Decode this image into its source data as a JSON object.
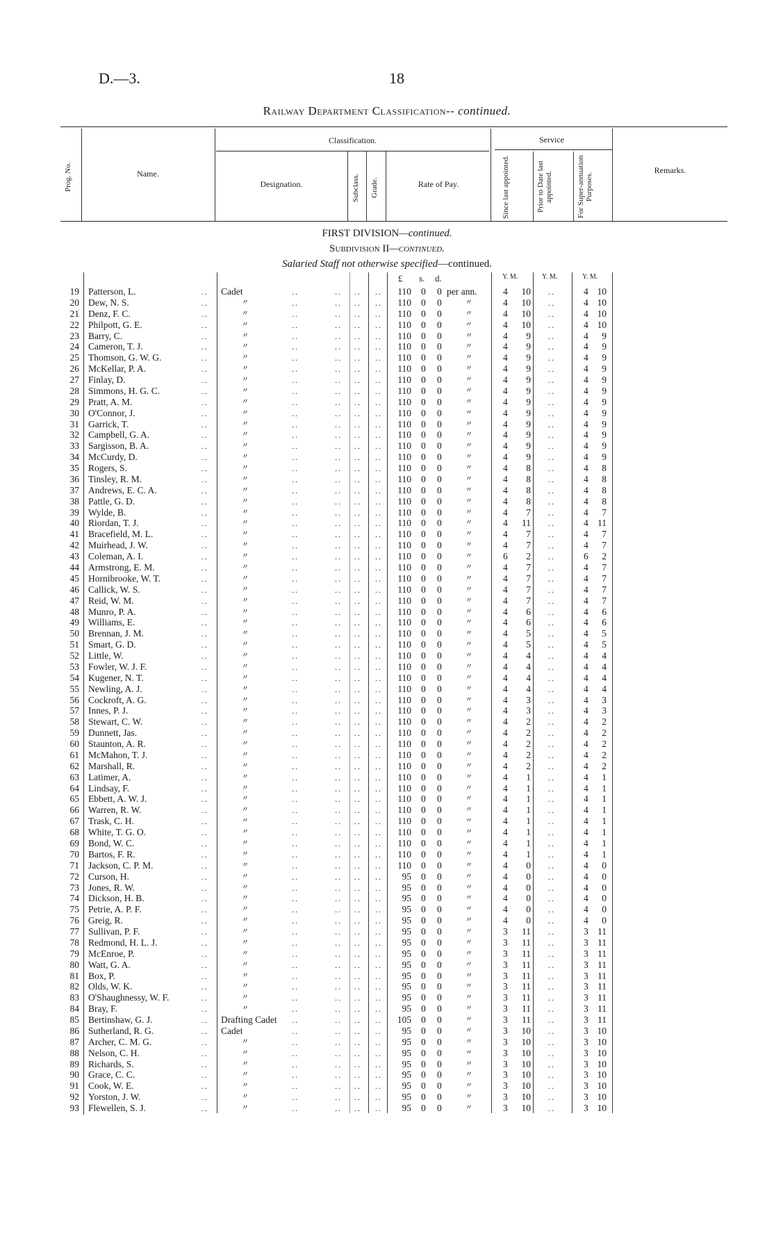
{
  "header": {
    "code": "D.—3.",
    "page_number": "18",
    "title": "Railway Department Classification--",
    "title_suffix": "continued."
  },
  "columns": {
    "prog_no": "Prog. No.",
    "name": "Name.",
    "classification": "Classification.",
    "designation": "Designation.",
    "subclass": "Subclass.",
    "grade": "Grade.",
    "rate_of_pay": "Rate of Pay.",
    "service": "Service",
    "since_last": "Since last appointed.",
    "prior_to_date": "Prior to Date last appointed.",
    "superannuation": "For Super-annuation Purposes.",
    "remarks": "Remarks."
  },
  "section": {
    "division": "FIRST DIVISION",
    "division_suffix": "—continued.",
    "subdivision": "Subdivision II",
    "subdivision_suffix": "—continued.",
    "group": "Salaried Staff not otherwise specified",
    "group_suffix": "—continued."
  },
  "units": {
    "pounds": "£",
    "shillings": "s.",
    "pence": "d.",
    "since": "Y. M.",
    "prior": "Y. M.",
    "super": "Y. M."
  },
  "rows": [
    {
      "no": "19",
      "name": "Patterson, L.",
      "des": "Cadet",
      "l": "110",
      "s": "0",
      "d": "0",
      "per": "per ann.",
      "sy": "4",
      "sm": "10",
      "prior": "..",
      "uy": "4",
      "um": "10"
    },
    {
      "no": "20",
      "name": "Dew, N. S.",
      "des": "〃",
      "l": "110",
      "s": "0",
      "d": "0",
      "per": "〃",
      "sy": "4",
      "sm": "10",
      "prior": "..",
      "uy": "4",
      "um": "10"
    },
    {
      "no": "21",
      "name": "Denz, F. C.",
      "des": "〃",
      "l": "110",
      "s": "0",
      "d": "0",
      "per": "〃",
      "sy": "4",
      "sm": "10",
      "prior": "..",
      "uy": "4",
      "um": "10"
    },
    {
      "no": "22",
      "name": "Philpott, G. E.",
      "des": "〃",
      "l": "110",
      "s": "0",
      "d": "0",
      "per": "〃",
      "sy": "4",
      "sm": "10",
      "prior": "..",
      "uy": "4",
      "um": "10"
    },
    {
      "no": "23",
      "name": "Barry, C.",
      "des": "〃",
      "l": "110",
      "s": "0",
      "d": "0",
      "per": "〃",
      "sy": "4",
      "sm": "9",
      "prior": "..",
      "uy": "4",
      "um": "9"
    },
    {
      "no": "24",
      "name": "Cameron, T. J.",
      "des": "〃",
      "l": "110",
      "s": "0",
      "d": "0",
      "per": "〃",
      "sy": "4",
      "sm": "9",
      "prior": "..",
      "uy": "4",
      "um": "9"
    },
    {
      "no": "25",
      "name": "Thomson, G. W. G.",
      "des": "〃",
      "l": "110",
      "s": "0",
      "d": "0",
      "per": "〃",
      "sy": "4",
      "sm": "9",
      "prior": "..",
      "uy": "4",
      "um": "9"
    },
    {
      "no": "26",
      "name": "McKellar, P. A.",
      "des": "〃",
      "l": "110",
      "s": "0",
      "d": "0",
      "per": "〃",
      "sy": "4",
      "sm": "9",
      "prior": "..",
      "uy": "4",
      "um": "9"
    },
    {
      "no": "27",
      "name": "Finlay, D.",
      "des": "〃",
      "l": "110",
      "s": "0",
      "d": "0",
      "per": "〃",
      "sy": "4",
      "sm": "9",
      "prior": "..",
      "uy": "4",
      "um": "9"
    },
    {
      "no": "28",
      "name": "Simmons, H. G. C.",
      "des": "〃",
      "l": "110",
      "s": "0",
      "d": "0",
      "per": "〃",
      "sy": "4",
      "sm": "9",
      "prior": "..",
      "uy": "4",
      "um": "9"
    },
    {
      "no": "29",
      "name": "Pratt, A. M.",
      "des": "〃",
      "l": "110",
      "s": "0",
      "d": "0",
      "per": "〃",
      "sy": "4",
      "sm": "9",
      "prior": "..",
      "uy": "4",
      "um": "9"
    },
    {
      "no": "30",
      "name": "O'Connor, J.",
      "des": "〃",
      "l": "110",
      "s": "0",
      "d": "0",
      "per": "〃",
      "sy": "4",
      "sm": "9",
      "prior": "..",
      "uy": "4",
      "um": "9"
    },
    {
      "no": "31",
      "name": "Garrick, T.",
      "des": "〃",
      "l": "110",
      "s": "0",
      "d": "0",
      "per": "〃",
      "sy": "4",
      "sm": "9",
      "prior": "..",
      "uy": "4",
      "um": "9"
    },
    {
      "no": "32",
      "name": "Campbell, G. A.",
      "des": "〃",
      "l": "110",
      "s": "0",
      "d": "0",
      "per": "〃",
      "sy": "4",
      "sm": "9",
      "prior": "..",
      "uy": "4",
      "um": "9"
    },
    {
      "no": "33",
      "name": "Sargisson, B. A.",
      "des": "〃",
      "l": "110",
      "s": "0",
      "d": "0",
      "per": "〃",
      "sy": "4",
      "sm": "9",
      "prior": "..",
      "uy": "4",
      "um": "9"
    },
    {
      "no": "34",
      "name": "McCurdy, D.",
      "des": "〃",
      "l": "110",
      "s": "0",
      "d": "0",
      "per": "〃",
      "sy": "4",
      "sm": "9",
      "prior": "..",
      "uy": "4",
      "um": "9"
    },
    {
      "no": "35",
      "name": "Rogers, S.",
      "des": "〃",
      "l": "110",
      "s": "0",
      "d": "0",
      "per": "〃",
      "sy": "4",
      "sm": "8",
      "prior": "..",
      "uy": "4",
      "um": "8"
    },
    {
      "no": "36",
      "name": "Tinsley, R. M.",
      "des": "〃",
      "l": "110",
      "s": "0",
      "d": "0",
      "per": "〃",
      "sy": "4",
      "sm": "8",
      "prior": "..",
      "uy": "4",
      "um": "8"
    },
    {
      "no": "37",
      "name": "Andrews, E. C. A.",
      "des": "〃",
      "l": "110",
      "s": "0",
      "d": "0",
      "per": "〃",
      "sy": "4",
      "sm": "8",
      "prior": "..",
      "uy": "4",
      "um": "8"
    },
    {
      "no": "38",
      "name": "Pattle, G. D.",
      "des": "〃",
      "l": "110",
      "s": "0",
      "d": "0",
      "per": "〃",
      "sy": "4",
      "sm": "8",
      "prior": "..",
      "uy": "4",
      "um": "8"
    },
    {
      "no": "39",
      "name": "Wylde, B.",
      "des": "〃",
      "l": "110",
      "s": "0",
      "d": "0",
      "per": "〃",
      "sy": "4",
      "sm": "7",
      "prior": "..",
      "uy": "4",
      "um": "7"
    },
    {
      "no": "40",
      "name": "Riordan, T. J.",
      "des": "〃",
      "l": "110",
      "s": "0",
      "d": "0",
      "per": "〃",
      "sy": "4",
      "sm": "11",
      "prior": "..",
      "uy": "4",
      "um": "11"
    },
    {
      "no": "41",
      "name": "Bracefield, M. L.",
      "des": "〃",
      "l": "110",
      "s": "0",
      "d": "0",
      "per": "〃",
      "sy": "4",
      "sm": "7",
      "prior": "..",
      "uy": "4",
      "um": "7"
    },
    {
      "no": "42",
      "name": "Muirhead, J. W.",
      "des": "〃",
      "l": "110",
      "s": "0",
      "d": "0",
      "per": "〃",
      "sy": "4",
      "sm": "7",
      "prior": "..",
      "uy": "4",
      "um": "7"
    },
    {
      "no": "43",
      "name": "Coleman, A. I.",
      "des": "〃",
      "l": "110",
      "s": "0",
      "d": "0",
      "per": "〃",
      "sy": "6",
      "sm": "2",
      "prior": "..",
      "uy": "6",
      "um": "2"
    },
    {
      "no": "44",
      "name": "Armstrong, E. M.",
      "des": "〃",
      "l": "110",
      "s": "0",
      "d": "0",
      "per": "〃",
      "sy": "4",
      "sm": "7",
      "prior": "..",
      "uy": "4",
      "um": "7"
    },
    {
      "no": "45",
      "name": "Hornibrooke, W. T.",
      "des": "〃",
      "l": "110",
      "s": "0",
      "d": "0",
      "per": "〃",
      "sy": "4",
      "sm": "7",
      "prior": "..",
      "uy": "4",
      "um": "7"
    },
    {
      "no": "46",
      "name": "Callick, W. S.",
      "des": "〃",
      "l": "110",
      "s": "0",
      "d": "0",
      "per": "〃",
      "sy": "4",
      "sm": "7",
      "prior": "..",
      "uy": "4",
      "um": "7"
    },
    {
      "no": "47",
      "name": "Reid, W. M.",
      "des": "〃",
      "l": "110",
      "s": "0",
      "d": "0",
      "per": "〃",
      "sy": "4",
      "sm": "7",
      "prior": "..",
      "uy": "4",
      "um": "7"
    },
    {
      "no": "48",
      "name": "Munro, P. A.",
      "des": "〃",
      "l": "110",
      "s": "0",
      "d": "0",
      "per": "〃",
      "sy": "4",
      "sm": "6",
      "prior": "..",
      "uy": "4",
      "um": "6"
    },
    {
      "no": "49",
      "name": "Williams, E.",
      "des": "〃",
      "l": "110",
      "s": "0",
      "d": "0",
      "per": "〃",
      "sy": "4",
      "sm": "6",
      "prior": "..",
      "uy": "4",
      "um": "6"
    },
    {
      "no": "50",
      "name": "Brennan, J. M.",
      "des": "〃",
      "l": "110",
      "s": "0",
      "d": "0",
      "per": "〃",
      "sy": "4",
      "sm": "5",
      "prior": "..",
      "uy": "4",
      "um": "5"
    },
    {
      "no": "51",
      "name": "Smart, G. D.",
      "des": "〃",
      "l": "110",
      "s": "0",
      "d": "0",
      "per": "〃",
      "sy": "4",
      "sm": "5",
      "prior": "..",
      "uy": "4",
      "um": "5"
    },
    {
      "no": "52",
      "name": "Little, W.",
      "des": "〃",
      "l": "110",
      "s": "0",
      "d": "0",
      "per": "〃",
      "sy": "4",
      "sm": "4",
      "prior": "..",
      "uy": "4",
      "um": "4"
    },
    {
      "no": "53",
      "name": "Fowler, W. J. F.",
      "des": "〃",
      "l": "110",
      "s": "0",
      "d": "0",
      "per": "〃",
      "sy": "4",
      "sm": "4",
      "prior": "..",
      "uy": "4",
      "um": "4"
    },
    {
      "no": "54",
      "name": "Kugener, N. T.",
      "des": "〃",
      "l": "110",
      "s": "0",
      "d": "0",
      "per": "〃",
      "sy": "4",
      "sm": "4",
      "prior": "..",
      "uy": "4",
      "um": "4"
    },
    {
      "no": "55",
      "name": "Newling, A. J.",
      "des": "〃",
      "l": "110",
      "s": "0",
      "d": "0",
      "per": "〃",
      "sy": "4",
      "sm": "4",
      "prior": "..",
      "uy": "4",
      "um": "4"
    },
    {
      "no": "56",
      "name": "Cockroft, A. G.",
      "des": "〃",
      "l": "110",
      "s": "0",
      "d": "0",
      "per": "〃",
      "sy": "4",
      "sm": "3",
      "prior": "..",
      "uy": "4",
      "um": "3"
    },
    {
      "no": "57",
      "name": "Innes, P. J.",
      "des": "〃",
      "l": "110",
      "s": "0",
      "d": "0",
      "per": "〃",
      "sy": "4",
      "sm": "3",
      "prior": "..",
      "uy": "4",
      "um": "3"
    },
    {
      "no": "58",
      "name": "Stewart, C. W.",
      "des": "〃",
      "l": "110",
      "s": "0",
      "d": "0",
      "per": "〃",
      "sy": "4",
      "sm": "2",
      "prior": "..",
      "uy": "4",
      "um": "2"
    },
    {
      "no": "59",
      "name": "Dunnett, Jas.",
      "des": "〃",
      "l": "110",
      "s": "0",
      "d": "0",
      "per": "〃",
      "sy": "4",
      "sm": "2",
      "prior": "..",
      "uy": "4",
      "um": "2"
    },
    {
      "no": "60",
      "name": "Staunton, A. R.",
      "des": "〃",
      "l": "110",
      "s": "0",
      "d": "0",
      "per": "〃",
      "sy": "4",
      "sm": "2",
      "prior": "..",
      "uy": "4",
      "um": "2"
    },
    {
      "no": "61",
      "name": "McMahon, T. J.",
      "des": "〃",
      "l": "110",
      "s": "0",
      "d": "0",
      "per": "〃",
      "sy": "4",
      "sm": "2",
      "prior": "..",
      "uy": "4",
      "um": "2"
    },
    {
      "no": "62",
      "name": "Marshall, R.",
      "des": "〃",
      "l": "110",
      "s": "0",
      "d": "0",
      "per": "〃",
      "sy": "4",
      "sm": "2",
      "prior": "..",
      "uy": "4",
      "um": "2"
    },
    {
      "no": "63",
      "name": "Latimer, A.",
      "des": "〃",
      "l": "110",
      "s": "0",
      "d": "0",
      "per": "〃",
      "sy": "4",
      "sm": "1",
      "prior": "..",
      "uy": "4",
      "um": "1"
    },
    {
      "no": "64",
      "name": "Lindsay, F.",
      "des": "〃",
      "l": "110",
      "s": "0",
      "d": "0",
      "per": "〃",
      "sy": "4",
      "sm": "1",
      "prior": "..",
      "uy": "4",
      "um": "1"
    },
    {
      "no": "65",
      "name": "Ebbett, A. W. J.",
      "des": "〃",
      "l": "110",
      "s": "0",
      "d": "0",
      "per": "〃",
      "sy": "4",
      "sm": "1",
      "prior": "..",
      "uy": "4",
      "um": "1"
    },
    {
      "no": "66",
      "name": "Warren, R. W.",
      "des": "〃",
      "l": "110",
      "s": "0",
      "d": "0",
      "per": "〃",
      "sy": "4",
      "sm": "1",
      "prior": "..",
      "uy": "4",
      "um": "1"
    },
    {
      "no": "67",
      "name": "Trask, C. H.",
      "des": "〃",
      "l": "110",
      "s": "0",
      "d": "0",
      "per": "〃",
      "sy": "4",
      "sm": "1",
      "prior": "..",
      "uy": "4",
      "um": "1"
    },
    {
      "no": "68",
      "name": "White, T. G. O.",
      "des": "〃",
      "l": "110",
      "s": "0",
      "d": "0",
      "per": "〃",
      "sy": "4",
      "sm": "1",
      "prior": "..",
      "uy": "4",
      "um": "1"
    },
    {
      "no": "69",
      "name": "Bond, W. C.",
      "des": "〃",
      "l": "110",
      "s": "0",
      "d": "0",
      "per": "〃",
      "sy": "4",
      "sm": "1",
      "prior": "..",
      "uy": "4",
      "um": "1"
    },
    {
      "no": "70",
      "name": "Bartos, F. R.",
      "des": "〃",
      "l": "110",
      "s": "0",
      "d": "0",
      "per": "〃",
      "sy": "4",
      "sm": "1",
      "prior": "..",
      "uy": "4",
      "um": "1"
    },
    {
      "no": "71",
      "name": "Jackson, C. P. M.",
      "des": "〃",
      "l": "110",
      "s": "0",
      "d": "0",
      "per": "〃",
      "sy": "4",
      "sm": "0",
      "prior": "..",
      "uy": "4",
      "um": "0"
    },
    {
      "no": "72",
      "name": "Curson, H.",
      "des": "〃",
      "l": "95",
      "s": "0",
      "d": "0",
      "per": "〃",
      "sy": "4",
      "sm": "0",
      "prior": "..",
      "uy": "4",
      "um": "0"
    },
    {
      "no": "73",
      "name": "Jones, R. W.",
      "des": "〃",
      "l": "95",
      "s": "0",
      "d": "0",
      "per": "〃",
      "sy": "4",
      "sm": "0",
      "prior": "..",
      "uy": "4",
      "um": "0"
    },
    {
      "no": "74",
      "name": "Dickson, H. B.",
      "des": "〃",
      "l": "95",
      "s": "0",
      "d": "0",
      "per": "〃",
      "sy": "4",
      "sm": "0",
      "prior": "..",
      "uy": "4",
      "um": "0"
    },
    {
      "no": "75",
      "name": "Petrie, A. P. F.",
      "des": "〃",
      "l": "95",
      "s": "0",
      "d": "0",
      "per": "〃",
      "sy": "4",
      "sm": "0",
      "prior": "..",
      "uy": "4",
      "um": "0"
    },
    {
      "no": "76",
      "name": "Greig, R.",
      "des": "〃",
      "l": "95",
      "s": "0",
      "d": "0",
      "per": "〃",
      "sy": "4",
      "sm": "0",
      "prior": "..",
      "uy": "4",
      "um": "0"
    },
    {
      "no": "77",
      "name": "Sullivan, P. F.",
      "des": "〃",
      "l": "95",
      "s": "0",
      "d": "0",
      "per": "〃",
      "sy": "3",
      "sm": "11",
      "prior": "..",
      "uy": "3",
      "um": "11"
    },
    {
      "no": "78",
      "name": "Redmond, H. L. J.",
      "des": "〃",
      "l": "95",
      "s": "0",
      "d": "0",
      "per": "〃",
      "sy": "3",
      "sm": "11",
      "prior": "..",
      "uy": "3",
      "um": "11"
    },
    {
      "no": "79",
      "name": "McEnroe, P.",
      "des": "〃",
      "l": "95",
      "s": "0",
      "d": "0",
      "per": "〃",
      "sy": "3",
      "sm": "11",
      "prior": "..",
      "uy": "3",
      "um": "11"
    },
    {
      "no": "80",
      "name": "Watt, G. A.",
      "des": "〃",
      "l": "95",
      "s": "0",
      "d": "0",
      "per": "〃",
      "sy": "3",
      "sm": "11",
      "prior": "..",
      "uy": "3",
      "um": "11"
    },
    {
      "no": "81",
      "name": "Box, P.",
      "des": "〃",
      "l": "95",
      "s": "0",
      "d": "0",
      "per": "〃",
      "sy": "3",
      "sm": "11",
      "prior": "..",
      "uy": "3",
      "um": "11"
    },
    {
      "no": "82",
      "name": "Olds, W. K.",
      "des": "〃",
      "l": "95",
      "s": "0",
      "d": "0",
      "per": "〃",
      "sy": "3",
      "sm": "11",
      "prior": "..",
      "uy": "3",
      "um": "11"
    },
    {
      "no": "83",
      "name": "O'Shaughnessy, W. F.",
      "des": "〃",
      "l": "95",
      "s": "0",
      "d": "0",
      "per": "〃",
      "sy": "3",
      "sm": "11",
      "prior": "..",
      "uy": "3",
      "um": "11"
    },
    {
      "no": "84",
      "name": "Bray, F.",
      "des": "〃",
      "l": "95",
      "s": "0",
      "d": "0",
      "per": "〃",
      "sy": "3",
      "sm": "11",
      "prior": "..",
      "uy": "3",
      "um": "11"
    },
    {
      "no": "85",
      "name": "Bertinshaw, G. J.",
      "des": "Drafting Cadet",
      "l": "105",
      "s": "0",
      "d": "0",
      "per": "〃",
      "sy": "3",
      "sm": "11",
      "prior": "..",
      "uy": "3",
      "um": "11"
    },
    {
      "no": "86",
      "name": "Sutherland, R. G.",
      "des": "Cadet",
      "l": "95",
      "s": "0",
      "d": "0",
      "per": "〃",
      "sy": "3",
      "sm": "10",
      "prior": "..",
      "uy": "3",
      "um": "10"
    },
    {
      "no": "87",
      "name": "Archer, C. M. G.",
      "des": "〃",
      "l": "95",
      "s": "0",
      "d": "0",
      "per": "〃",
      "sy": "3",
      "sm": "10",
      "prior": "..",
      "uy": "3",
      "um": "10"
    },
    {
      "no": "88",
      "name": "Nelson, C. H.",
      "des": "〃",
      "l": "95",
      "s": "0",
      "d": "0",
      "per": "〃",
      "sy": "3",
      "sm": "10",
      "prior": "..",
      "uy": "3",
      "um": "10"
    },
    {
      "no": "89",
      "name": "Richards, S.",
      "des": "〃",
      "l": "95",
      "s": "0",
      "d": "0",
      "per": "〃",
      "sy": "3",
      "sm": "10",
      "prior": "..",
      "uy": "3",
      "um": "10"
    },
    {
      "no": "90",
      "name": "Grace, C. C.",
      "des": "〃",
      "l": "95",
      "s": "0",
      "d": "0",
      "per": "〃",
      "sy": "3",
      "sm": "10",
      "prior": "..",
      "uy": "3",
      "um": "10"
    },
    {
      "no": "91",
      "name": "Cook, W. E.",
      "des": "〃",
      "l": "95",
      "s": "0",
      "d": "0",
      "per": "〃",
      "sy": "3",
      "sm": "10",
      "prior": "..",
      "uy": "3",
      "um": "10"
    },
    {
      "no": "92",
      "name": "Yorston, J. W.",
      "des": "〃",
      "l": "95",
      "s": "0",
      "d": "0",
      "per": "〃",
      "sy": "3",
      "sm": "10",
      "prior": "..",
      "uy": "3",
      "um": "10"
    },
    {
      "no": "93",
      "name": "Flewellen, S. J.",
      "des": "〃",
      "l": "95",
      "s": "0",
      "d": "0",
      "per": "〃",
      "sy": "3",
      "sm": "10",
      "prior": "..",
      "uy": "3",
      "um": "10"
    }
  ]
}
